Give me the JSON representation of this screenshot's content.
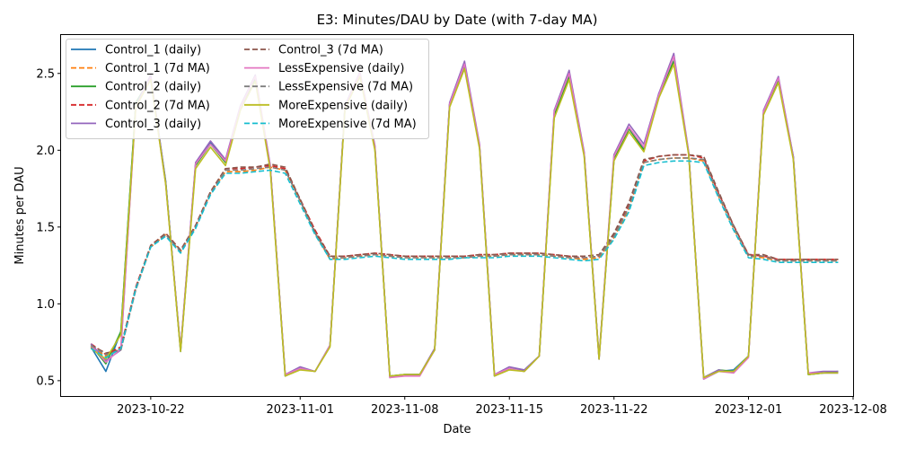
{
  "chart_data": {
    "type": "line",
    "title": "E3: Minutes/DAU by Date (with 7-day MA)",
    "xlabel": "Date",
    "ylabel": "Minutes per DAU",
    "xlim": [
      "2023-10-16",
      "2023-12-08"
    ],
    "ylim": [
      0.4,
      2.75
    ],
    "x_ticks": [
      "2023-10-22",
      "2023-11-01",
      "2023-11-08",
      "2023-11-15",
      "2023-11-22",
      "2023-12-01",
      "2023-12-08"
    ],
    "y_ticks": [
      0.5,
      1.0,
      1.5,
      2.0,
      2.5
    ],
    "grid": false,
    "legend": {
      "position": "top-left",
      "columns": 2
    },
    "x": [
      "2023-10-18",
      "2023-10-19",
      "2023-10-20",
      "2023-10-21",
      "2023-10-22",
      "2023-10-23",
      "2023-10-24",
      "2023-10-25",
      "2023-10-26",
      "2023-10-27",
      "2023-10-28",
      "2023-10-29",
      "2023-10-30",
      "2023-10-31",
      "2023-11-01",
      "2023-11-02",
      "2023-11-03",
      "2023-11-04",
      "2023-11-05",
      "2023-11-06",
      "2023-11-07",
      "2023-11-08",
      "2023-11-09",
      "2023-11-10",
      "2023-11-11",
      "2023-11-12",
      "2023-11-13",
      "2023-11-14",
      "2023-11-15",
      "2023-11-16",
      "2023-11-17",
      "2023-11-18",
      "2023-11-19",
      "2023-11-20",
      "2023-11-21",
      "2023-11-22",
      "2023-11-23",
      "2023-11-24",
      "2023-11-25",
      "2023-11-26",
      "2023-11-27",
      "2023-11-28",
      "2023-11-29",
      "2023-11-30",
      "2023-12-01",
      "2023-12-02",
      "2023-12-03",
      "2023-12-04",
      "2023-12-05",
      "2023-12-06",
      "2023-12-07"
    ],
    "series": [
      {
        "name": "Control_1 (daily)",
        "color": "#1f77b4",
        "dash": "solid",
        "values": [
          0.72,
          0.56,
          0.82,
          2.3,
          2.48,
          1.8,
          0.69,
          1.91,
          2.05,
          1.93,
          2.28,
          2.47,
          1.89,
          0.53,
          0.58,
          0.56,
          0.73,
          2.28,
          2.49,
          2.02,
          0.53,
          0.54,
          0.54,
          0.7,
          2.3,
          2.56,
          2.02,
          0.53,
          0.58,
          0.57,
          0.66,
          2.24,
          2.49,
          1.98,
          0.64,
          1.94,
          2.14,
          2.01,
          2.37,
          2.58,
          1.98,
          0.51,
          0.56,
          0.57,
          0.66,
          2.24,
          2.45,
          1.96,
          0.54,
          0.55,
          0.55
        ]
      },
      {
        "name": "Control_1 (7d MA)",
        "color": "#ff7f0e",
        "dash": "dashed",
        "values": [
          0.72,
          0.66,
          0.72,
          1.1,
          1.37,
          1.45,
          1.34,
          1.5,
          1.72,
          1.86,
          1.86,
          1.87,
          1.89,
          1.87,
          1.67,
          1.46,
          1.29,
          1.3,
          1.31,
          1.32,
          1.31,
          1.3,
          1.3,
          1.3,
          1.3,
          1.3,
          1.31,
          1.31,
          1.32,
          1.32,
          1.32,
          1.31,
          1.3,
          1.29,
          1.3,
          1.43,
          1.62,
          1.92,
          1.94,
          1.95,
          1.95,
          1.93,
          1.7,
          1.49,
          1.31,
          1.3,
          1.28,
          1.28,
          1.28,
          1.28,
          1.28
        ]
      },
      {
        "name": "Control_2 (daily)",
        "color": "#2ca02c",
        "dash": "solid",
        "values": [
          0.73,
          0.61,
          0.82,
          2.31,
          2.47,
          1.79,
          0.7,
          1.9,
          2.04,
          1.92,
          2.28,
          2.46,
          1.89,
          0.54,
          0.58,
          0.56,
          0.73,
          2.29,
          2.5,
          2.01,
          0.53,
          0.54,
          0.54,
          0.7,
          2.3,
          2.55,
          2.03,
          0.54,
          0.58,
          0.56,
          0.66,
          2.23,
          2.48,
          1.97,
          0.65,
          1.94,
          2.14,
          2.0,
          2.36,
          2.58,
          1.98,
          0.52,
          0.57,
          0.56,
          0.66,
          2.24,
          2.46,
          1.95,
          0.54,
          0.55,
          0.56
        ]
      },
      {
        "name": "Control_2 (7d MA)",
        "color": "#d62728",
        "dash": "dashed",
        "values": [
          0.74,
          0.67,
          0.72,
          1.11,
          1.38,
          1.46,
          1.35,
          1.51,
          1.73,
          1.88,
          1.88,
          1.89,
          1.9,
          1.88,
          1.68,
          1.48,
          1.31,
          1.31,
          1.32,
          1.33,
          1.32,
          1.31,
          1.31,
          1.31,
          1.31,
          1.31,
          1.32,
          1.32,
          1.33,
          1.33,
          1.33,
          1.32,
          1.31,
          1.3,
          1.31,
          1.45,
          1.64,
          1.93,
          1.96,
          1.97,
          1.97,
          1.95,
          1.72,
          1.51,
          1.32,
          1.31,
          1.29,
          1.29,
          1.29,
          1.29,
          1.29
        ]
      },
      {
        "name": "Control_3 (daily)",
        "color": "#9467bd",
        "dash": "solid",
        "values": [
          0.74,
          0.63,
          0.7,
          2.29,
          2.49,
          1.79,
          0.71,
          1.92,
          2.06,
          1.94,
          2.29,
          2.49,
          1.9,
          0.54,
          0.59,
          0.56,
          0.73,
          2.29,
          2.51,
          2.03,
          0.52,
          0.54,
          0.54,
          0.71,
          2.31,
          2.58,
          2.04,
          0.54,
          0.59,
          0.57,
          0.66,
          2.26,
          2.52,
          1.99,
          0.65,
          1.97,
          2.17,
          2.04,
          2.37,
          2.63,
          1.99,
          0.52,
          0.57,
          0.55,
          0.66,
          2.26,
          2.48,
          1.96,
          0.55,
          0.56,
          0.56
        ]
      },
      {
        "name": "Control_3 (7d MA)",
        "color": "#8c564b",
        "dash": "dashed",
        "values": [
          0.73,
          0.68,
          0.7,
          1.1,
          1.38,
          1.46,
          1.35,
          1.51,
          1.73,
          1.88,
          1.89,
          1.89,
          1.91,
          1.89,
          1.68,
          1.47,
          1.31,
          1.31,
          1.32,
          1.33,
          1.32,
          1.31,
          1.31,
          1.31,
          1.31,
          1.31,
          1.32,
          1.32,
          1.33,
          1.33,
          1.33,
          1.32,
          1.31,
          1.31,
          1.32,
          1.46,
          1.66,
          1.94,
          1.96,
          1.97,
          1.97,
          1.96,
          1.73,
          1.51,
          1.32,
          1.32,
          1.29,
          1.29,
          1.29,
          1.29,
          1.29
        ]
      },
      {
        "name": "LessExpensive (daily)",
        "color": "#e377c2",
        "dash": "solid",
        "values": [
          0.73,
          0.62,
          0.71,
          2.28,
          2.47,
          1.78,
          0.7,
          1.91,
          2.04,
          1.93,
          2.28,
          2.48,
          1.89,
          0.54,
          0.58,
          0.56,
          0.73,
          2.28,
          2.5,
          2.02,
          0.52,
          0.53,
          0.53,
          0.7,
          2.3,
          2.56,
          2.03,
          0.54,
          0.58,
          0.56,
          0.66,
          2.25,
          2.5,
          1.98,
          0.64,
          1.96,
          2.15,
          2.02,
          2.36,
          2.61,
          1.98,
          0.51,
          0.56,
          0.55,
          0.65,
          2.25,
          2.47,
          1.95,
          0.55,
          0.55,
          0.55
        ]
      },
      {
        "name": "LessExpensive (7d MA)",
        "color": "#7f7f7f",
        "dash": "dashed",
        "values": [
          0.73,
          0.67,
          0.7,
          1.09,
          1.37,
          1.45,
          1.34,
          1.5,
          1.72,
          1.87,
          1.87,
          1.88,
          1.89,
          1.87,
          1.67,
          1.46,
          1.3,
          1.3,
          1.31,
          1.32,
          1.31,
          1.3,
          1.3,
          1.3,
          1.3,
          1.3,
          1.31,
          1.31,
          1.32,
          1.32,
          1.32,
          1.31,
          1.3,
          1.3,
          1.31,
          1.44,
          1.63,
          1.92,
          1.94,
          1.95,
          1.95,
          1.94,
          1.71,
          1.5,
          1.31,
          1.31,
          1.28,
          1.28,
          1.28,
          1.28,
          1.28
        ]
      },
      {
        "name": "MoreExpensive (daily)",
        "color": "#bcbd22",
        "dash": "solid",
        "values": [
          0.71,
          0.64,
          0.8,
          2.28,
          2.46,
          1.78,
          0.69,
          1.88,
          2.02,
          1.9,
          2.26,
          2.45,
          1.87,
          0.53,
          0.57,
          0.56,
          0.72,
          2.27,
          2.48,
          2.0,
          0.53,
          0.54,
          0.54,
          0.7,
          2.28,
          2.53,
          2.01,
          0.53,
          0.57,
          0.56,
          0.66,
          2.21,
          2.46,
          1.96,
          0.64,
          1.93,
          2.12,
          1.99,
          2.34,
          2.56,
          1.97,
          0.52,
          0.56,
          0.56,
          0.66,
          2.23,
          2.44,
          1.94,
          0.54,
          0.55,
          0.55
        ]
      },
      {
        "name": "MoreExpensive (7d MA)",
        "color": "#17becf",
        "dash": "dashed",
        "values": [
          0.71,
          0.65,
          0.71,
          1.1,
          1.37,
          1.44,
          1.33,
          1.49,
          1.71,
          1.85,
          1.85,
          1.86,
          1.87,
          1.85,
          1.65,
          1.45,
          1.29,
          1.29,
          1.3,
          1.31,
          1.3,
          1.29,
          1.29,
          1.29,
          1.29,
          1.3,
          1.3,
          1.3,
          1.31,
          1.31,
          1.31,
          1.3,
          1.29,
          1.28,
          1.29,
          1.42,
          1.6,
          1.9,
          1.92,
          1.93,
          1.93,
          1.92,
          1.69,
          1.48,
          1.3,
          1.29,
          1.27,
          1.27,
          1.27,
          1.27,
          1.27
        ]
      }
    ]
  }
}
